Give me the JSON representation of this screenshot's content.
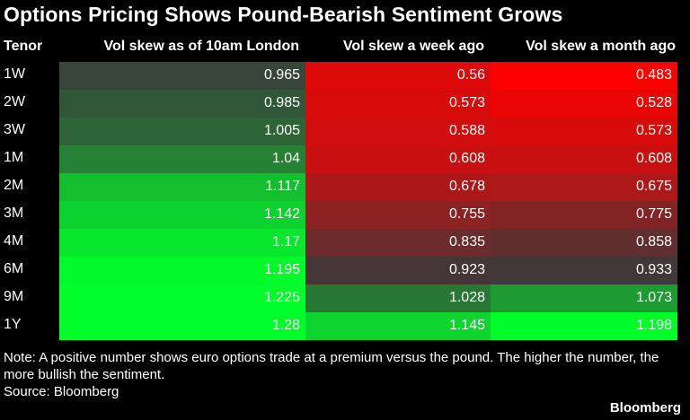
{
  "title": "Options Pricing Shows Pound-Bearish Sentiment Grows",
  "chart_data": {
    "type": "heatmap",
    "title": "Options Pricing Shows Pound-Bearish Sentiment Grows",
    "row_header": "Tenor",
    "columns": [
      "Vol skew as of 10am London",
      "Vol skew a week ago",
      "Vol skew a month ago"
    ],
    "rows": [
      "1W",
      "2W",
      "3W",
      "1M",
      "2M",
      "3M",
      "4M",
      "6M",
      "9M",
      "1Y"
    ],
    "values": [
      [
        "0.965",
        "0.56",
        "0.483"
      ],
      [
        "0.985",
        "0.573",
        "0.528"
      ],
      [
        "1.005",
        "0.588",
        "0.573"
      ],
      [
        "1.04",
        "0.608",
        "0.608"
      ],
      [
        "1.117",
        "0.678",
        "0.675"
      ],
      [
        "1.142",
        "0.755",
        "0.775"
      ],
      [
        "1.17",
        "0.835",
        "0.858"
      ],
      [
        "1.195",
        "0.923",
        "0.933"
      ],
      [
        "1.225",
        "1.028",
        "1.073"
      ],
      [
        "1.28",
        "1.145",
        "1.198"
      ]
    ],
    "color_scale": {
      "low": "#ff0000",
      "mid": "#3a3a3a",
      "high": "#00ff2a"
    }
  },
  "note": "Note: A positive number shows euro options trade at a premium versus the pound. The higher the number, the more bullish the sentiment.",
  "source": "Source: Bloomberg",
  "brand": "Bloomberg"
}
